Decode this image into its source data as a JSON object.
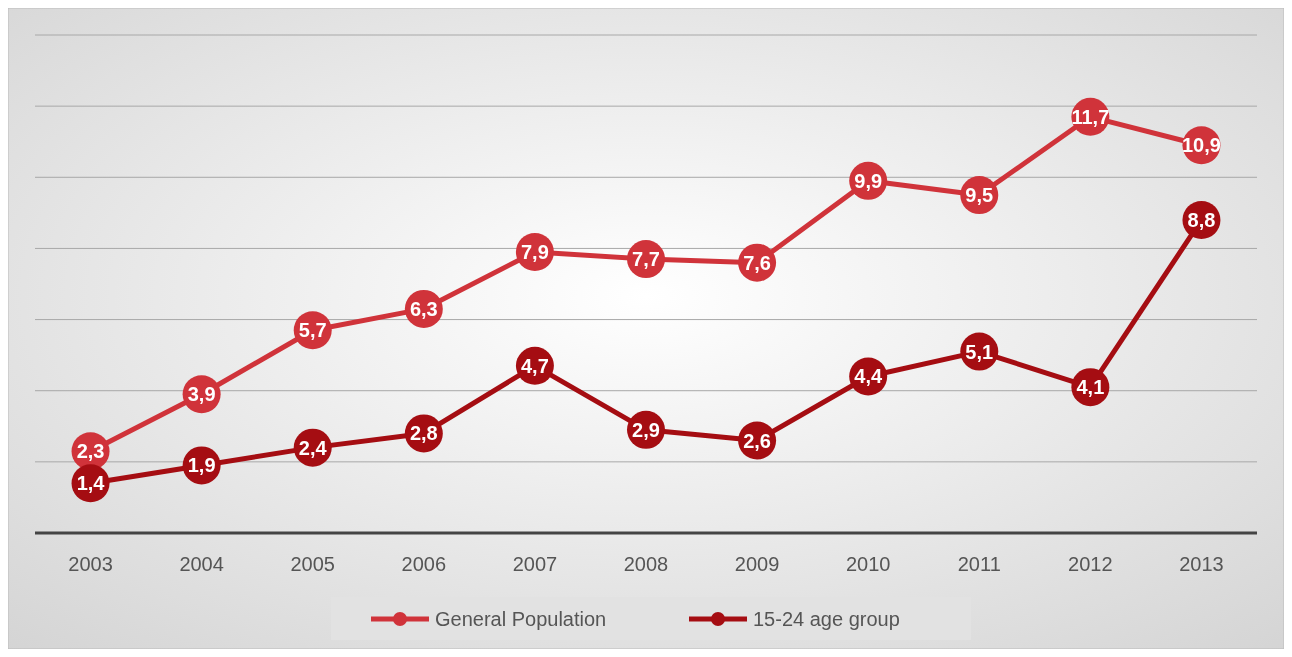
{
  "chart_data": {
    "type": "line",
    "categories": [
      "2003",
      "2004",
      "2005",
      "2006",
      "2007",
      "2008",
      "2009",
      "2010",
      "2011",
      "2012",
      "2013"
    ],
    "series": [
      {
        "name": "General Population",
        "color": "#d0333a",
        "values": [
          2.3,
          3.9,
          5.7,
          6.3,
          7.9,
          7.7,
          7.6,
          9.9,
          9.5,
          11.7,
          10.9
        ],
        "value_labels": [
          "2,3",
          "3,9",
          "5,7",
          "6,3",
          "7,9",
          "7,7",
          "7,6",
          "9,9",
          "9,5",
          "11,7",
          "10,9"
        ]
      },
      {
        "name": "15-24 age group",
        "color": "#a50d12",
        "values": [
          1.4,
          1.9,
          2.4,
          2.8,
          4.7,
          2.9,
          2.6,
          4.4,
          5.1,
          4.1,
          8.8
        ],
        "value_labels": [
          "1,4",
          "1,9",
          "2,4",
          "2,8",
          "4,7",
          "2,9",
          "2,6",
          "4,4",
          "5,1",
          "4,1",
          "8,8"
        ]
      }
    ],
    "ylim": [
      0,
      14
    ],
    "yticks": [
      {
        "value": 0,
        "label": null
      },
      {
        "value": 2,
        "label": null
      },
      {
        "value": 4,
        "label": null
      },
      {
        "value": 6,
        "label": null
      },
      {
        "value": 8,
        "label": null
      },
      {
        "value": 10,
        "label": null
      },
      {
        "value": 12,
        "label": null
      },
      {
        "value": 14,
        "label": null
      }
    ],
    "tick_labels": "x",
    "grid": "y",
    "legend": "bottom",
    "marker": "circle",
    "line_style": "solid"
  }
}
